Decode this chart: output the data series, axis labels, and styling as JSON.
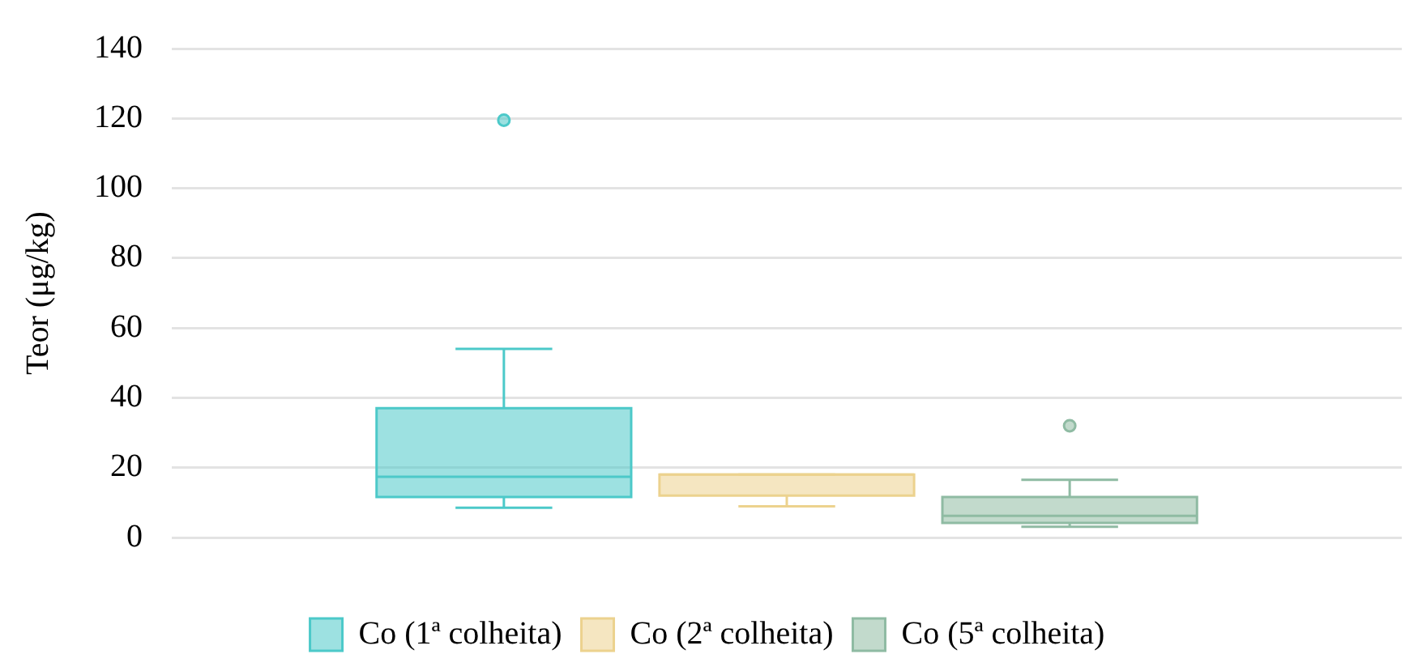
{
  "chart_data": {
    "type": "box",
    "ylabel": "Teor (μg/kg)",
    "categories": [
      null
    ],
    "series": [
      {
        "name": "Co (1ª colheita)",
        "color": "#4cc9c9",
        "boxes": [
          {
            "low": 8.5,
            "q1": 11.6,
            "median": 17.4,
            "q3": 37,
            "high": 54,
            "outliers": [
              119.5
            ]
          }
        ]
      },
      {
        "name": "Co (2ª colheita)",
        "color": "#ecd28e",
        "boxes": [
          {
            "low": 8.9,
            "q1": 12,
            "median": 18,
            "q3": 18,
            "high": 18
          }
        ]
      },
      {
        "name": "Co (5ª colheita)",
        "color": "#8fbba3",
        "boxes": [
          {
            "low": 3.1,
            "q1": 4.2,
            "median": 6.2,
            "q3": 11.6,
            "high": 16.5,
            "outliers": [
              32
            ]
          }
        ]
      }
    ],
    "ylim": [
      0,
      140
    ],
    "yticks": [
      0,
      20,
      40,
      60,
      80,
      100,
      120,
      140
    ],
    "grid": "y",
    "legend": "bottom"
  }
}
